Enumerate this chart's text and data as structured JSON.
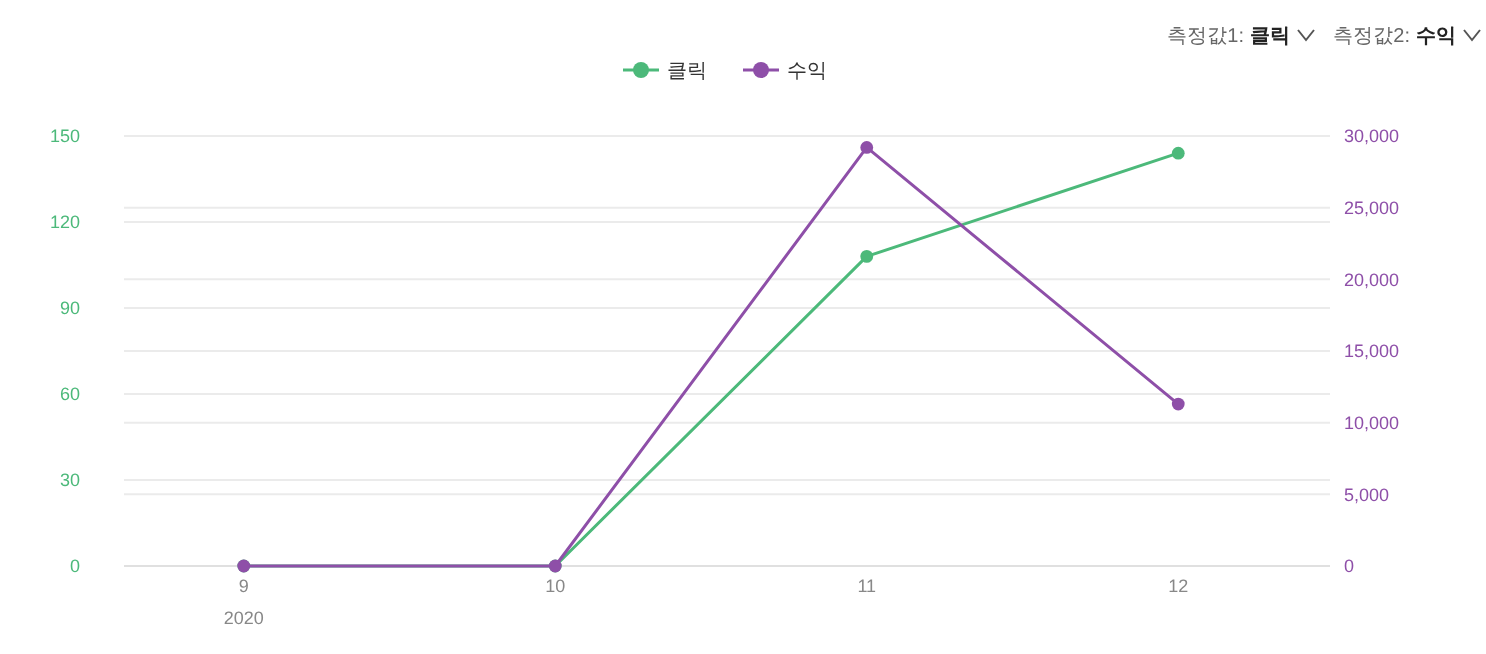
{
  "chart_data": {
    "type": "line",
    "categories": [
      "9",
      "10",
      "11",
      "12"
    ],
    "series": [
      {
        "name": "클릭",
        "color": "#4cb97a",
        "values": [
          0,
          0,
          108,
          144
        ]
      },
      {
        "name": "수익",
        "color": "#8e4fa8",
        "axis": "y2",
        "values": [
          0,
          0,
          29200,
          11300
        ]
      }
    ],
    "ylim": [
      0,
      150
    ],
    "yticks": [
      0,
      30,
      60,
      90,
      120,
      150
    ],
    "y2lim": [
      0,
      30000
    ],
    "y2ticks": [
      0,
      {
        "value": 5000,
        "label": "5,000"
      },
      {
        "value": 10000,
        "label": "10,000"
      },
      {
        "value": 15000,
        "label": "15,000"
      },
      {
        "value": 20000,
        "label": "20,000"
      },
      {
        "value": 25000,
        "label": "25,000"
      },
      {
        "value": 30000,
        "label": "30,000"
      }
    ],
    "grid": true,
    "legend": "top",
    "marker": "circle",
    "line_style": "solid",
    "annotations": [
      "2020",
      "측정값1:",
      "클릭",
      "측정값2:",
      "수익"
    ]
  }
}
